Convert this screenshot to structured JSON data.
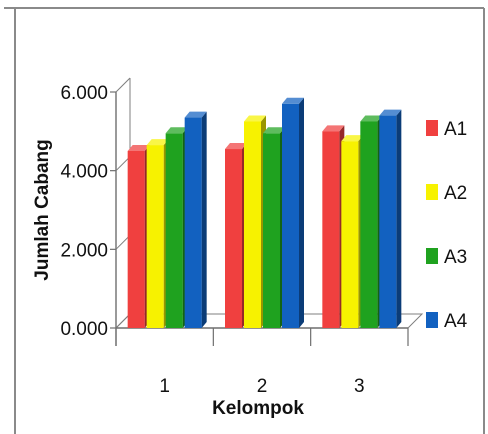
{
  "chart_data": {
    "type": "bar",
    "title": "",
    "xlabel": "Kelompok",
    "ylabel": "Jumlah Cabang",
    "categories": [
      "1",
      "2",
      "3"
    ],
    "y_tick_labels": [
      "0.000",
      "2.000",
      "4.000",
      "6.000"
    ],
    "y_ticks": [
      0,
      2,
      4,
      6
    ],
    "ylim": [
      0,
      6
    ],
    "grid": false,
    "legend_position": "right",
    "series": [
      {
        "name": "A1",
        "color": "#f0403f",
        "values": [
          4.5,
          4.55,
          5.0
        ]
      },
      {
        "name": "A2",
        "color": "#f7f200",
        "values": [
          4.65,
          5.25,
          4.75
        ]
      },
      {
        "name": "A3",
        "color": "#1fa21f",
        "values": [
          4.95,
          4.95,
          5.25
        ]
      },
      {
        "name": "A4",
        "color": "#1261c0",
        "values": [
          5.35,
          5.7,
          5.4
        ]
      }
    ]
  }
}
